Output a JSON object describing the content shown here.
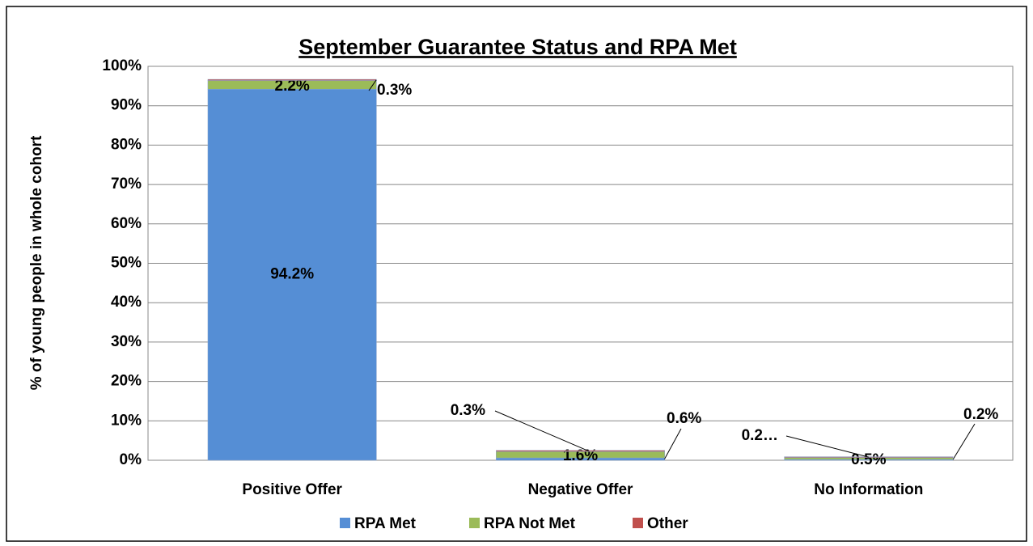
{
  "chart_data": {
    "type": "stacked-bar",
    "title": "September Guarantee Status and RPA Met",
    "y_label": "% of young people in whole cohort",
    "categories": [
      "Positive Offer",
      "Negative Offer",
      "No Information"
    ],
    "series": [
      {
        "name": "RPA Met",
        "color": "#558ed5",
        "values": [
          94.2,
          0.6,
          0.2
        ],
        "value_labels": [
          "94.2%",
          "0.6%",
          "0.2%"
        ]
      },
      {
        "name": "RPA Not Met",
        "color": "#9bbb59",
        "values": [
          2.2,
          1.6,
          0.5
        ],
        "value_labels": [
          "2.2%",
          "1.6%",
          "0.5%"
        ]
      },
      {
        "name": "Other",
        "color": "#c0504d",
        "values": [
          0.3,
          0.3,
          0.2
        ],
        "value_labels": [
          "0.3%",
          "0.3%",
          "0.2…"
        ]
      }
    ],
    "ylim": [
      0,
      100
    ],
    "yticks": [
      {
        "value": 0,
        "label": "0%"
      },
      {
        "value": 10,
        "label": "10%"
      },
      {
        "value": 20,
        "label": "20%"
      },
      {
        "value": 30,
        "label": "30%"
      },
      {
        "value": 40,
        "label": "40%"
      },
      {
        "value": 50,
        "label": "50%"
      },
      {
        "value": 60,
        "label": "60%"
      },
      {
        "value": 70,
        "label": "70%"
      },
      {
        "value": 80,
        "label": "80%"
      },
      {
        "value": 90,
        "label": "90%"
      },
      {
        "value": 100,
        "label": "100%"
      }
    ],
    "grid": true,
    "legend": "bottom"
  }
}
